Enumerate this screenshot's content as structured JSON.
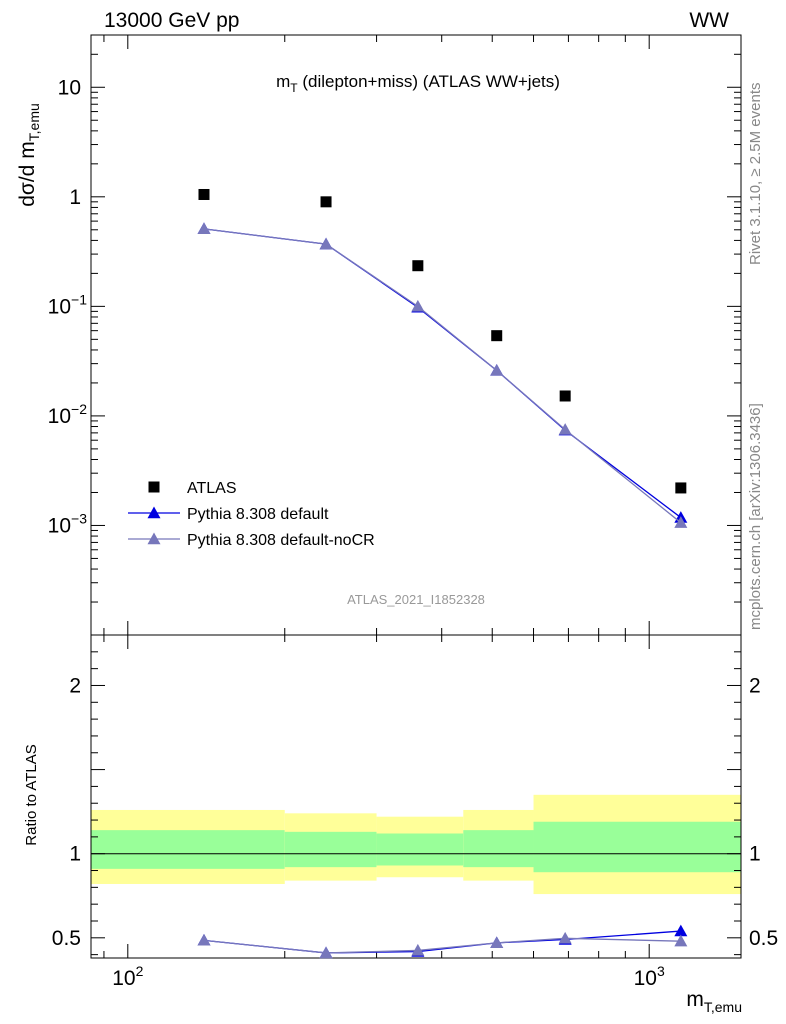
{
  "header": {
    "energy_label": "13000 GeV pp",
    "process_label": "WW"
  },
  "side_labels": {
    "rivet": "Rivet 3.1.10, ≥ 2.5M events",
    "mcplots": "mcplots.cern.ch [arXiv:1306.3436]"
  },
  "chart_data": [
    {
      "type": "scatter",
      "title": "m_T (dilepton+miss) (ATLAS WW+jets)",
      "title_main": "m",
      "title_sub": "T",
      "title_rest": " (dilepton+miss) (ATLAS WW+jets)",
      "ylabel": "dσ/d m_T,emu",
      "ylabel_main": "dσ/d m",
      "ylabel_sub": "T,emu",
      "xscale": "log",
      "yscale": "log",
      "xlim": [
        85,
        1500
      ],
      "ylim": [
        0.0001,
        30
      ],
      "y_ticks": [
        {
          "value": 10,
          "label": "10",
          "exp": ""
        },
        {
          "value": 1,
          "label": "1",
          "exp": ""
        },
        {
          "value": 0.1,
          "label": "10",
          "exp": "−1"
        },
        {
          "value": 0.01,
          "label": "10",
          "exp": "−2"
        },
        {
          "value": 0.001,
          "label": "10",
          "exp": "−3"
        }
      ],
      "watermark": "ATLAS_2021_I1852328",
      "legend_position": "bottom-left",
      "series": [
        {
          "name": "ATLAS",
          "marker": "square",
          "color": "#000000",
          "x": [
            140,
            240,
            360,
            510,
            690,
            1150
          ],
          "y": [
            1.05,
            0.9,
            0.235,
            0.054,
            0.0152,
            0.0022
          ]
        },
        {
          "name": "Pythia 8.308 default",
          "marker": "triangle",
          "color": "#0000e0",
          "x": [
            140,
            240,
            360,
            510,
            690,
            1150
          ],
          "y": [
            0.51,
            0.37,
            0.098,
            0.026,
            0.0074,
            0.00118
          ]
        },
        {
          "name": "Pythia 8.308 default-noCR",
          "marker": "triangle",
          "color": "#7777bb",
          "x": [
            140,
            240,
            360,
            510,
            690,
            1150
          ],
          "y": [
            0.51,
            0.37,
            0.1,
            0.026,
            0.0075,
            0.00106
          ]
        }
      ]
    },
    {
      "type": "scatter",
      "ylabel": "Ratio to ATLAS",
      "xlabel": "m_T,emu",
      "xlabel_main": "m",
      "xlabel_sub": "T,emu",
      "xscale": "log",
      "xlim": [
        85,
        1500
      ],
      "ylim": [
        0.38,
        2.3
      ],
      "y_ticks": [
        {
          "value": 0.5,
          "label": "0.5"
        },
        {
          "value": 1,
          "label": "1"
        },
        {
          "value": 2,
          "label": "2"
        }
      ],
      "x_ticks": [
        {
          "value": 100,
          "label": "10",
          "exp": "2"
        },
        {
          "value": 1000,
          "label": "10",
          "exp": "3"
        }
      ],
      "reference_line": 1,
      "bands": [
        {
          "x_low": 85,
          "x_high": 200,
          "inner_low": 0.91,
          "inner_high": 1.14,
          "outer_low": 0.82,
          "outer_high": 1.26
        },
        {
          "x_low": 200,
          "x_high": 300,
          "inner_low": 0.92,
          "inner_high": 1.13,
          "outer_low": 0.84,
          "outer_high": 1.24
        },
        {
          "x_low": 300,
          "x_high": 440,
          "inner_low": 0.93,
          "inner_high": 1.12,
          "outer_low": 0.86,
          "outer_high": 1.22
        },
        {
          "x_low": 440,
          "x_high": 600,
          "inner_low": 0.92,
          "inner_high": 1.14,
          "outer_low": 0.84,
          "outer_high": 1.26
        },
        {
          "x_low": 600,
          "x_high": 1500,
          "inner_low": 0.89,
          "inner_high": 1.19,
          "outer_low": 0.76,
          "outer_high": 1.35
        }
      ],
      "band_colors": {
        "inner": "#99ff99",
        "outer": "#ffff99"
      },
      "series": [
        {
          "name": "Pythia 8.308 default",
          "color": "#0000e0",
          "x": [
            140,
            240,
            360,
            510,
            690,
            1150
          ],
          "y": [
            0.485,
            0.41,
            0.418,
            0.47,
            0.49,
            0.54
          ],
          "err": [
            0.005,
            0.005,
            0.008,
            0.01,
            0.015,
            0.02
          ]
        },
        {
          "name": "Pythia 8.308 default-noCR",
          "color": "#7777bb",
          "x": [
            140,
            240,
            360,
            510,
            690,
            1150
          ],
          "y": [
            0.485,
            0.41,
            0.425,
            0.47,
            0.497,
            0.48
          ],
          "err": [
            0.005,
            0.005,
            0.008,
            0.01,
            0.015,
            0.02
          ]
        }
      ]
    }
  ]
}
